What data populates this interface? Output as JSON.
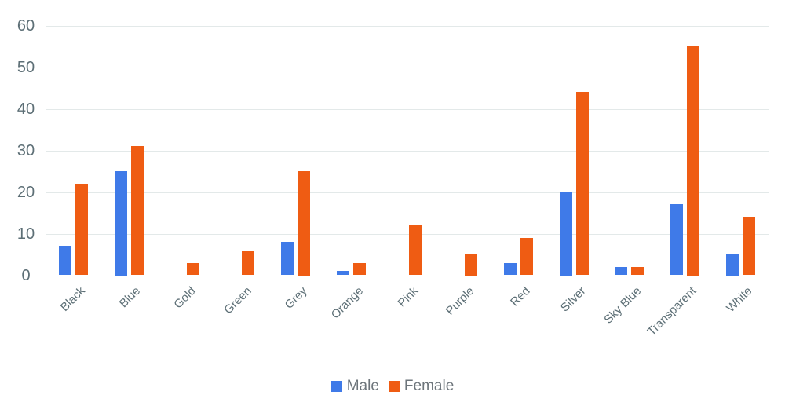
{
  "chart_data": {
    "type": "bar",
    "title": "",
    "xlabel": "",
    "ylabel": "",
    "categories": [
      "Black",
      "Blue",
      "Gold",
      "Green",
      "Grey",
      "Orange",
      "Pink",
      "Purple",
      "Red",
      "Silver",
      "Sky Blue",
      "Transparent",
      "White"
    ],
    "series": [
      {
        "name": "Male",
        "color": "#3F7AE8",
        "values": [
          7,
          25,
          0,
          0,
          8,
          1,
          0,
          0,
          3,
          20,
          2,
          17,
          5
        ]
      },
      {
        "name": "Female",
        "color": "#EF5C13",
        "values": [
          22,
          31,
          3,
          6,
          25,
          3,
          12,
          5,
          9,
          44,
          2,
          55,
          14
        ]
      }
    ],
    "ylim": [
      0,
      60
    ],
    "yticks": [
      0,
      10,
      20,
      30,
      40,
      50,
      60
    ],
    "grid": true,
    "legend_position": "bottom"
  },
  "colors": {
    "male": "#3F7AE8",
    "female": "#EF5C13",
    "gridline": "#E3E9E9",
    "baseline": "#DEE4E4",
    "axis_text": "#5D6F76",
    "legend_text": "#6D757B",
    "background": "#FFFFFF"
  },
  "legend": {
    "items": [
      "Male",
      "Female"
    ]
  }
}
